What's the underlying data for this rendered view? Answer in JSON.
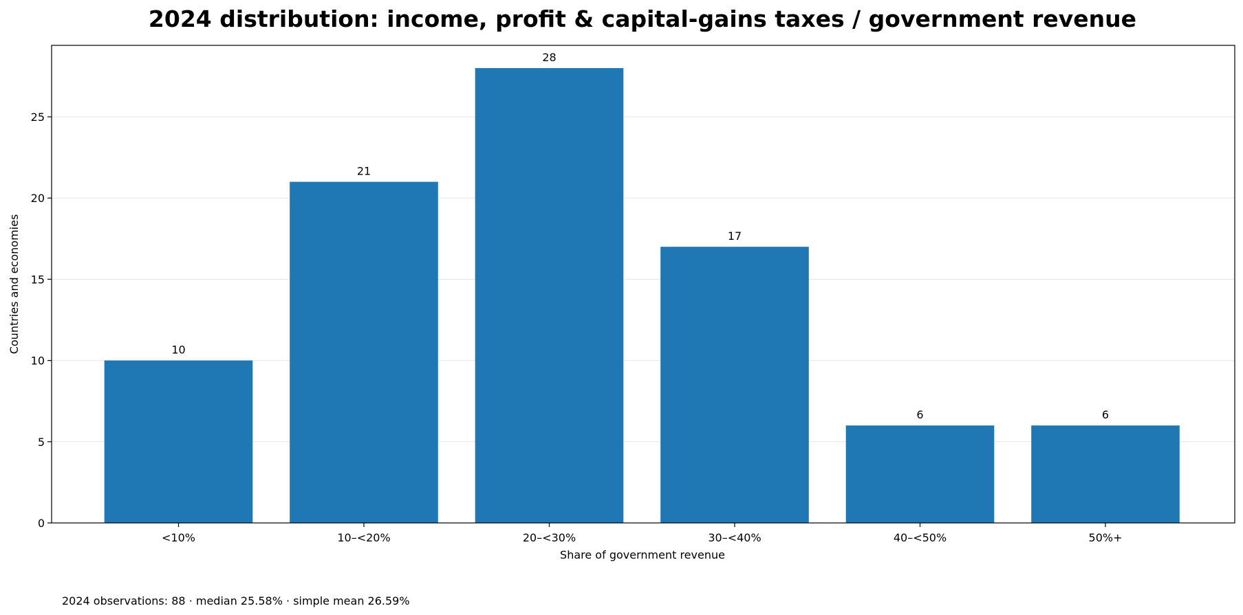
{
  "chart_data": {
    "type": "bar",
    "title": "2024 distribution: income, profit & capital-gains taxes / government revenue",
    "xlabel": "Share of government revenue",
    "ylabel": "Countries and economies",
    "categories": [
      "<10%",
      "10–<20%",
      "20–<30%",
      "30–<40%",
      "40–<50%",
      "50%+"
    ],
    "values": [
      10,
      21,
      28,
      17,
      6,
      6
    ],
    "data_labels": [
      "10",
      "21",
      "28",
      "17",
      "6",
      "6"
    ],
    "ylim": [
      0,
      29.4
    ],
    "yticks": [
      0,
      5,
      10,
      15,
      20,
      25
    ],
    "ytick_labels": [
      "0",
      "5",
      "10",
      "15",
      "20",
      "25"
    ],
    "grid": "horizontal",
    "bar_color": "#1f77b4",
    "grid_color": "#e6e6e6"
  },
  "footnote": "2024 observations: 88 · median 25.58% · simple mean 26.59%"
}
